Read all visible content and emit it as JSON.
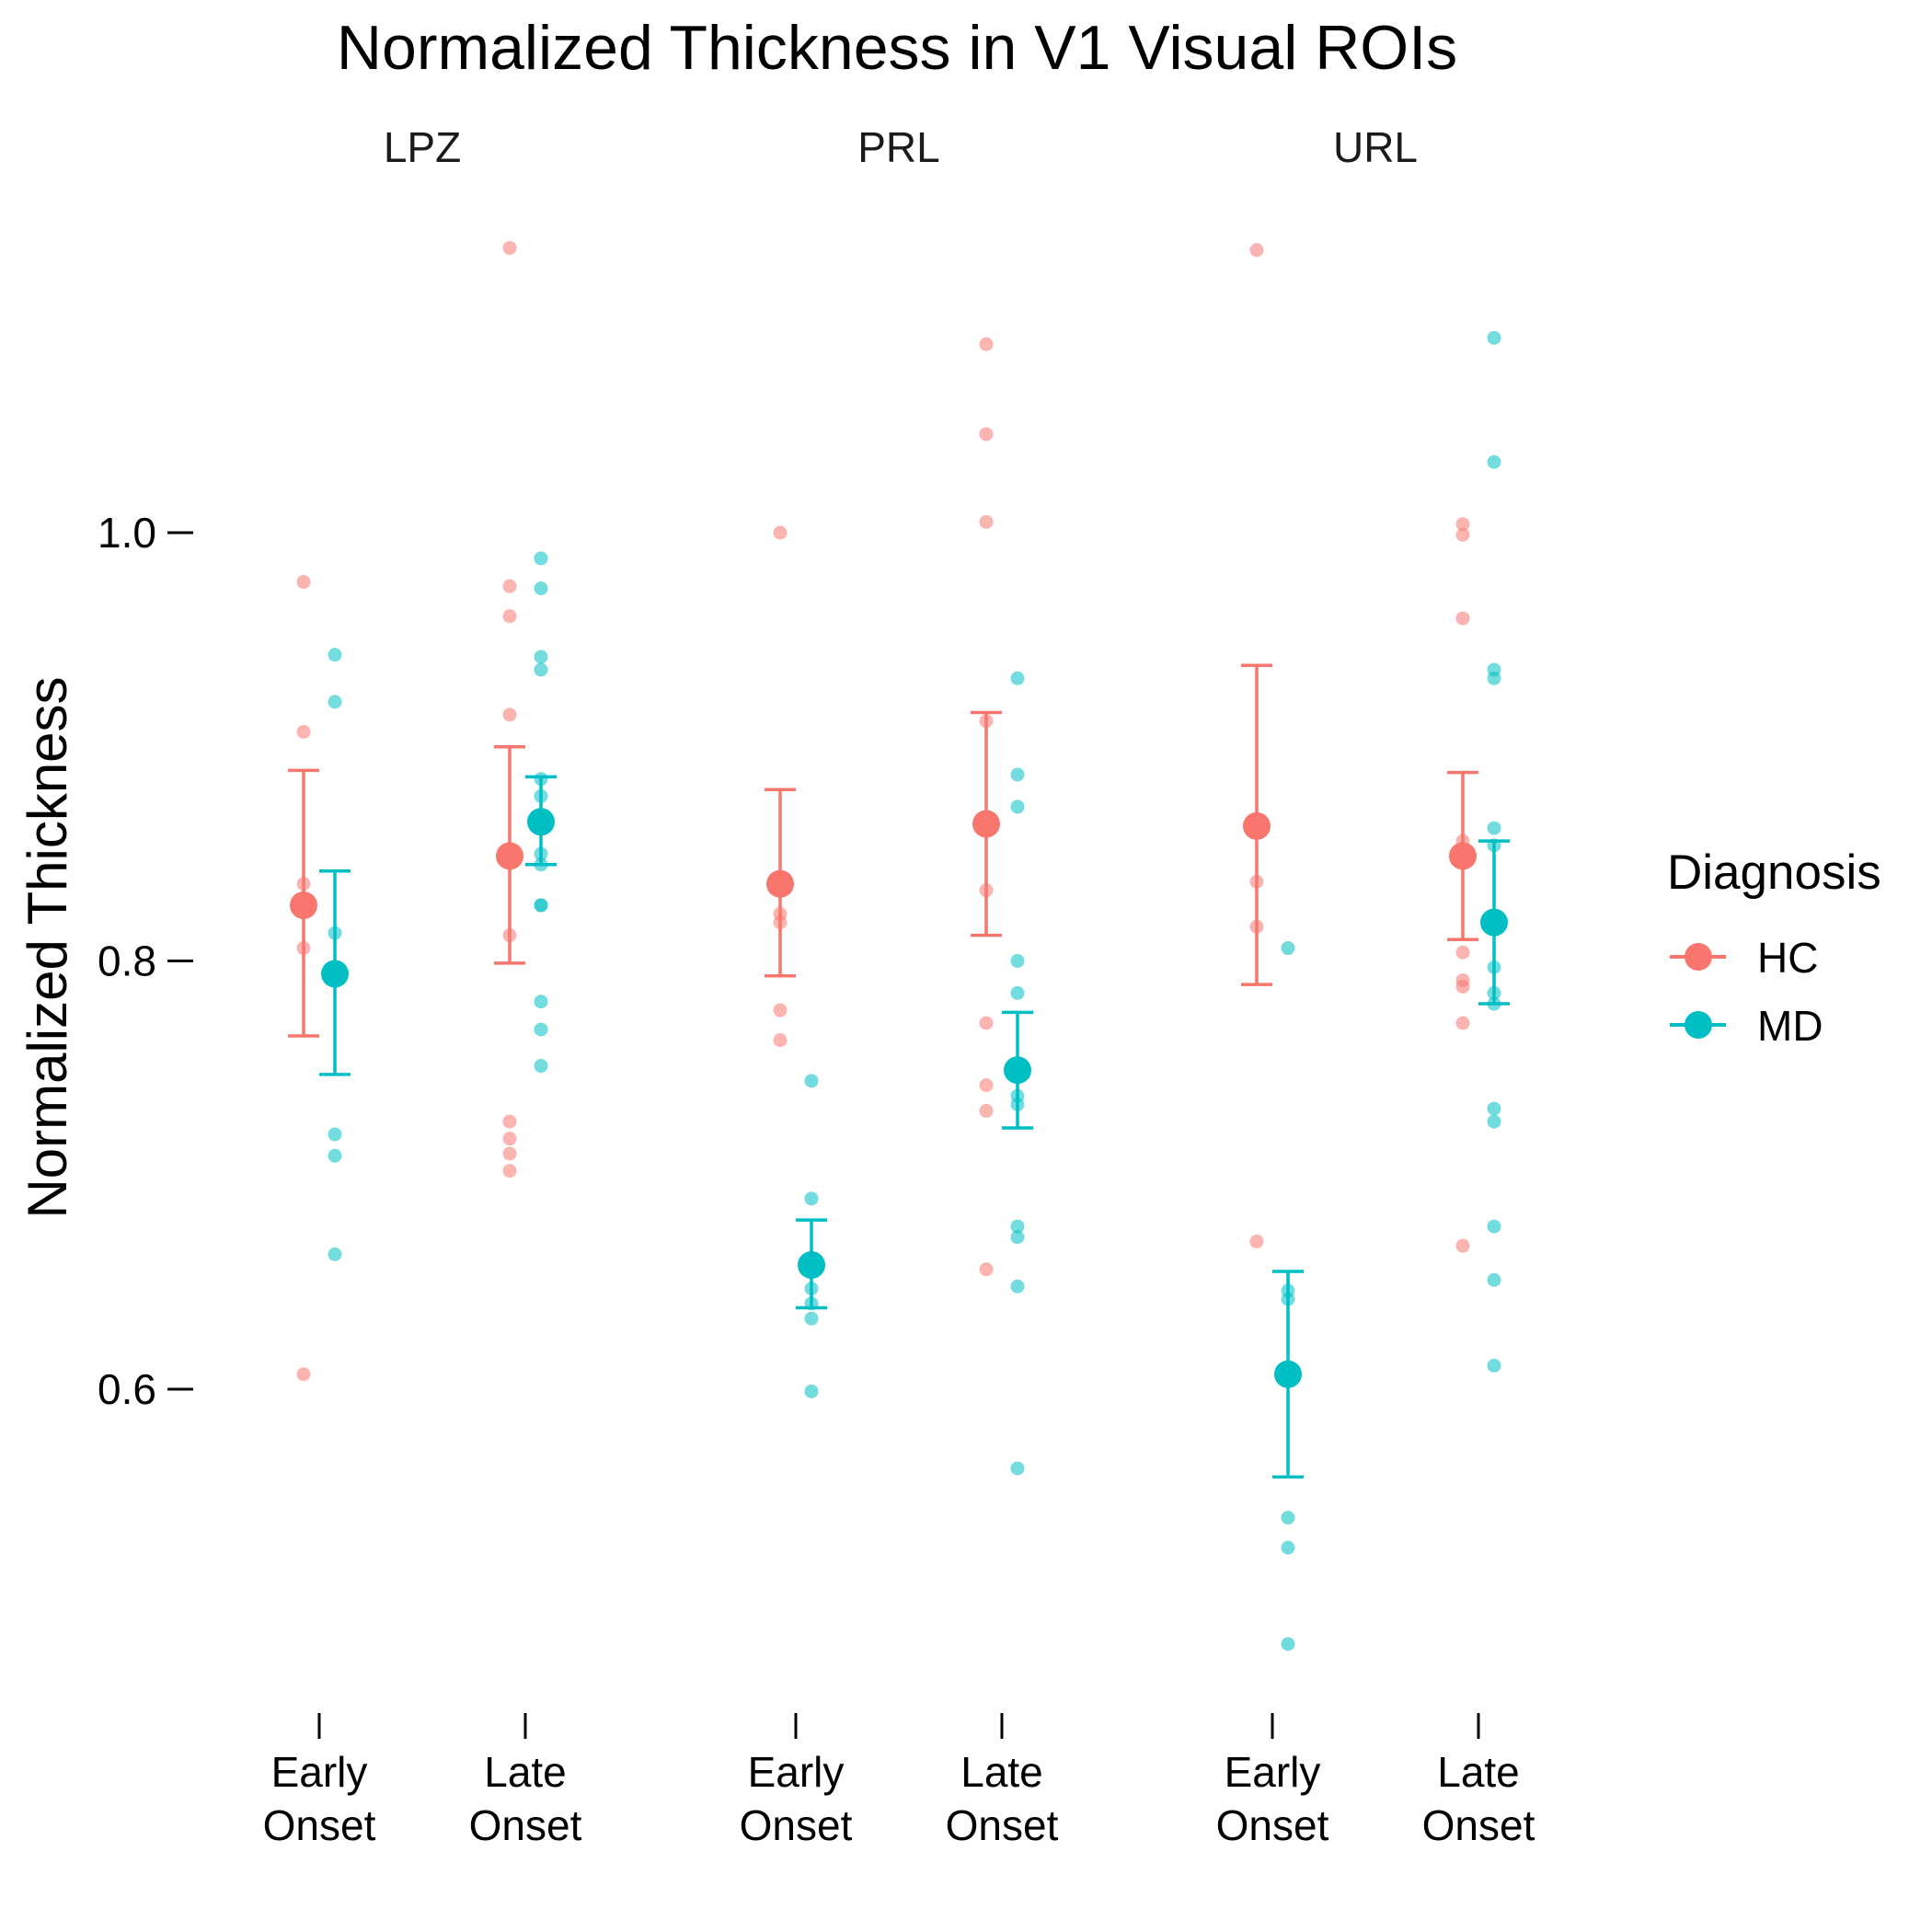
{
  "chart_data": {
    "type": "scatter",
    "title": "Normalized Thickness in V1 Visual ROIs",
    "ylabel": "Normalized Thickness",
    "xlabel": "",
    "ylim": [
      0.46,
      1.19
    ],
    "yticks": [
      0.6,
      0.8,
      1.0
    ],
    "ytick_labels": [
      "0.6",
      "0.8",
      "1.0"
    ],
    "grid": false,
    "legend": {
      "title": "Diagnosis",
      "position": "right",
      "entries": [
        {
          "name": "HC",
          "color": "#F8766D"
        },
        {
          "name": "MD",
          "color": "#00BFC4"
        }
      ]
    },
    "facets": [
      {
        "name": "LPZ",
        "groups": [
          {
            "label_lines": [
              "Early",
              "Onset"
            ],
            "series": [
              {
                "name": "HC",
                "mean": 0.826,
                "lower": 0.765,
                "upper": 0.889,
                "points": [
                  0.977,
                  0.907,
                  0.836,
                  0.806,
                  0.607
                ]
              },
              {
                "name": "MD",
                "mean": 0.794,
                "lower": 0.747,
                "upper": 0.842,
                "points": [
                  0.943,
                  0.921,
                  0.813,
                  0.719,
                  0.709,
                  0.663
                ]
              }
            ]
          },
          {
            "label_lines": [
              "Late",
              "Onset"
            ],
            "series": [
              {
                "name": "HC",
                "mean": 0.849,
                "lower": 0.799,
                "upper": 0.9,
                "points": [
                  1.133,
                  0.975,
                  0.961,
                  0.915,
                  0.812,
                  0.725,
                  0.717,
                  0.71,
                  0.702
                ]
              },
              {
                "name": "MD",
                "mean": 0.865,
                "lower": 0.845,
                "upper": 0.886,
                "points": [
                  0.988,
                  0.974,
                  0.942,
                  0.936,
                  0.885,
                  0.877,
                  0.862,
                  0.85,
                  0.845,
                  0.826,
                  0.826,
                  0.781,
                  0.768,
                  0.751
                ]
              }
            ]
          }
        ]
      },
      {
        "name": "PRL",
        "groups": [
          {
            "label_lines": [
              "Early",
              "Onset"
            ],
            "series": [
              {
                "name": "HC",
                "mean": 0.836,
                "lower": 0.793,
                "upper": 0.88,
                "points": [
                  1.0,
                  0.822,
                  0.818,
                  0.777,
                  0.763
                ]
              },
              {
                "name": "MD",
                "mean": 0.658,
                "lower": 0.638,
                "upper": 0.679,
                "points": [
                  0.744,
                  0.689,
                  0.647,
                  0.64,
                  0.633,
                  0.599
                ]
              }
            ]
          },
          {
            "label_lines": [
              "Late",
              "Onset"
            ],
            "series": [
              {
                "name": "HC",
                "mean": 0.864,
                "lower": 0.812,
                "upper": 0.916,
                "points": [
                  1.088,
                  1.046,
                  1.005,
                  0.912,
                  0.833,
                  0.771,
                  0.742,
                  0.73,
                  0.656
                ]
              },
              {
                "name": "MD",
                "mean": 0.749,
                "lower": 0.722,
                "upper": 0.776,
                "points": [
                  0.932,
                  0.887,
                  0.872,
                  0.8,
                  0.785,
                  0.737,
                  0.733,
                  0.676,
                  0.671,
                  0.648,
                  0.563
                ]
              }
            ]
          }
        ]
      },
      {
        "name": "URL",
        "groups": [
          {
            "label_lines": [
              "Early",
              "Onset"
            ],
            "series": [
              {
                "name": "HC",
                "mean": 0.863,
                "lower": 0.789,
                "upper": 0.938,
                "points": [
                  1.132,
                  0.837,
                  0.816,
                  0.669
                ]
              },
              {
                "name": "MD",
                "mean": 0.607,
                "lower": 0.559,
                "upper": 0.655,
                "points": [
                  0.806,
                  0.646,
                  0.642,
                  0.54,
                  0.526,
                  0.481
                ]
              }
            ]
          },
          {
            "label_lines": [
              "Late",
              "Onset"
            ],
            "series": [
              {
                "name": "HC",
                "mean": 0.849,
                "lower": 0.81,
                "upper": 0.888,
                "points": [
                  1.004,
                  0.999,
                  0.96,
                  0.856,
                  0.804,
                  0.791,
                  0.788,
                  0.771,
                  0.667
                ]
              },
              {
                "name": "MD",
                "mean": 0.818,
                "lower": 0.78,
                "upper": 0.856,
                "points": [
                  1.091,
                  1.033,
                  0.936,
                  0.932,
                  0.862,
                  0.854,
                  0.797,
                  0.785,
                  0.78,
                  0.731,
                  0.725,
                  0.676,
                  0.651,
                  0.611
                ]
              }
            ]
          }
        ]
      }
    ]
  }
}
